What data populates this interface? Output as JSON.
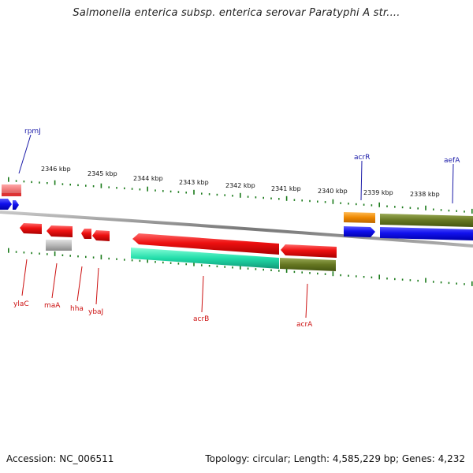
{
  "title": "Salmonella enterica subsp. enterica serovar Paratyphi A str....",
  "footer": {
    "accession": "Accession: NC_006511",
    "summary": "Topology: circular; Length: 4,585,229 bp; Genes: 4,232"
  },
  "ruler": {
    "labels": [
      "2346 kbp",
      "2345 kbp",
      "2344 kbp",
      "2343 kbp",
      "2342 kbp",
      "2341 kbp",
      "2340 kbp",
      "2339 kbp",
      "2338 kbp"
    ]
  },
  "genes_top": [
    "rpmJ",
    "acrR",
    "aefA"
  ],
  "genes_bottom": [
    "ylaC",
    "maA",
    "hha",
    "ybaJ",
    "acrB",
    "acrA"
  ],
  "colors": {
    "forward_label": "#1a1aa8",
    "reverse_label": "#cc1111",
    "red": "#ee1111",
    "blue": "#1111ee",
    "orange": "#ee8800",
    "olive": "#667722",
    "teal": "#22ddaa",
    "grey": "#b8b8b8",
    "pink": "#ee7777",
    "tick": "#1a7a1a",
    "backbone": "#888888"
  }
}
